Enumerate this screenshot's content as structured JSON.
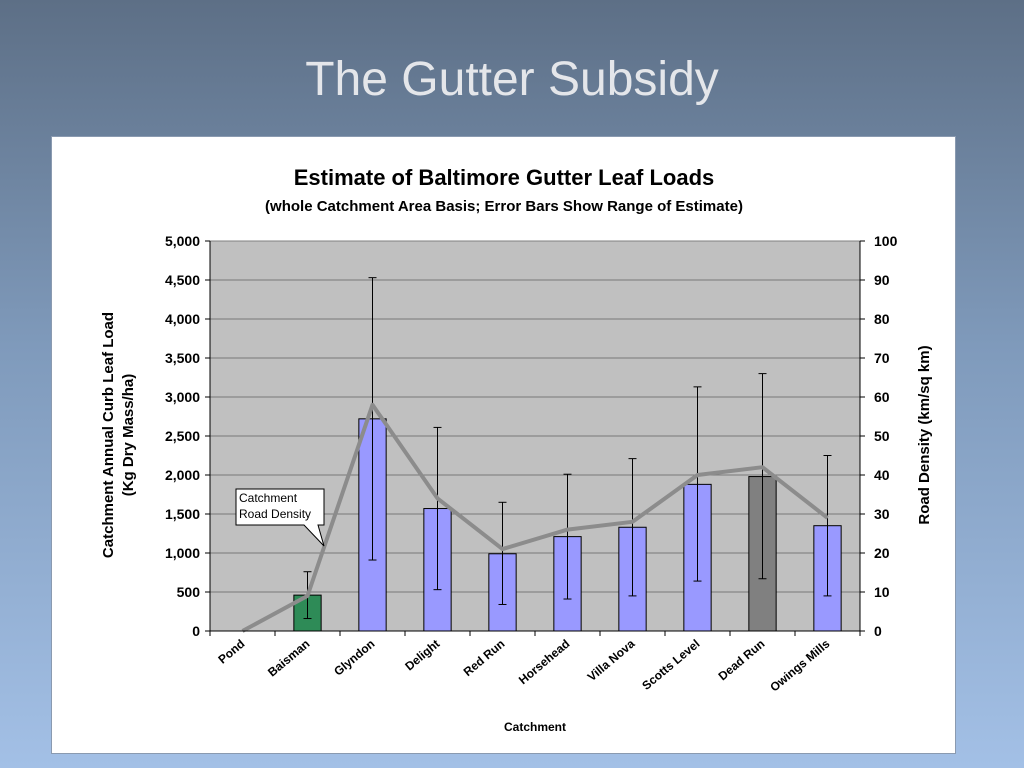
{
  "slide": {
    "title": "The Gutter Subsidy"
  },
  "chart_data": {
    "type": "bar",
    "title": "Estimate of Baltimore Gutter Leaf Loads",
    "subtitle": "(whole Catchment Area Basis; Error Bars Show Range of Estimate)",
    "xlabel": "Catchment",
    "ylabel_line1": "Catchment Annual Curb Leaf Load",
    "ylabel_line2": "(Kg Dry Mass/ha)",
    "y2label": "Road Density (km/sq km)",
    "ylim": [
      0,
      5000
    ],
    "y2lim": [
      0,
      100
    ],
    "yticks": [
      "0",
      "500",
      "1,000",
      "1,500",
      "2,000",
      "2,500",
      "3,000",
      "3,500",
      "4,000",
      "4,500",
      "5,000"
    ],
    "y2ticks": [
      "0",
      "10",
      "20",
      "30",
      "40",
      "50",
      "60",
      "70",
      "80",
      "90",
      "100"
    ],
    "grid": true,
    "categories": [
      "Pond",
      "Baisman",
      "Glyndon",
      "Delight",
      "Red Run",
      "Horsehead",
      "Villa Nova",
      "Scotts Level",
      "Dead Run",
      "Owings Mills"
    ],
    "series": [
      {
        "type": "bar",
        "axis": "left",
        "values": [
          0,
          460,
          2720,
          1570,
          990,
          1210,
          1330,
          1880,
          1980,
          1350
        ],
        "err_low": [
          0,
          160,
          910,
          530,
          340,
          410,
          450,
          640,
          670,
          450
        ],
        "err_high": [
          0,
          760,
          4530,
          2610,
          1650,
          2010,
          2210,
          3130,
          3300,
          2250
        ],
        "colors": [
          "#9999ff",
          "#2e8b57",
          "#9999ff",
          "#9999ff",
          "#9999ff",
          "#9999ff",
          "#9999ff",
          "#9999ff",
          "#808080",
          "#9999ff"
        ]
      },
      {
        "type": "line",
        "axis": "right",
        "values": [
          0,
          9,
          58,
          34,
          21,
          26,
          28,
          40,
          42,
          29
        ],
        "color": "#8c8c8c"
      }
    ],
    "annotation": {
      "line1": "Catchment",
      "line2": "Road Density"
    }
  }
}
